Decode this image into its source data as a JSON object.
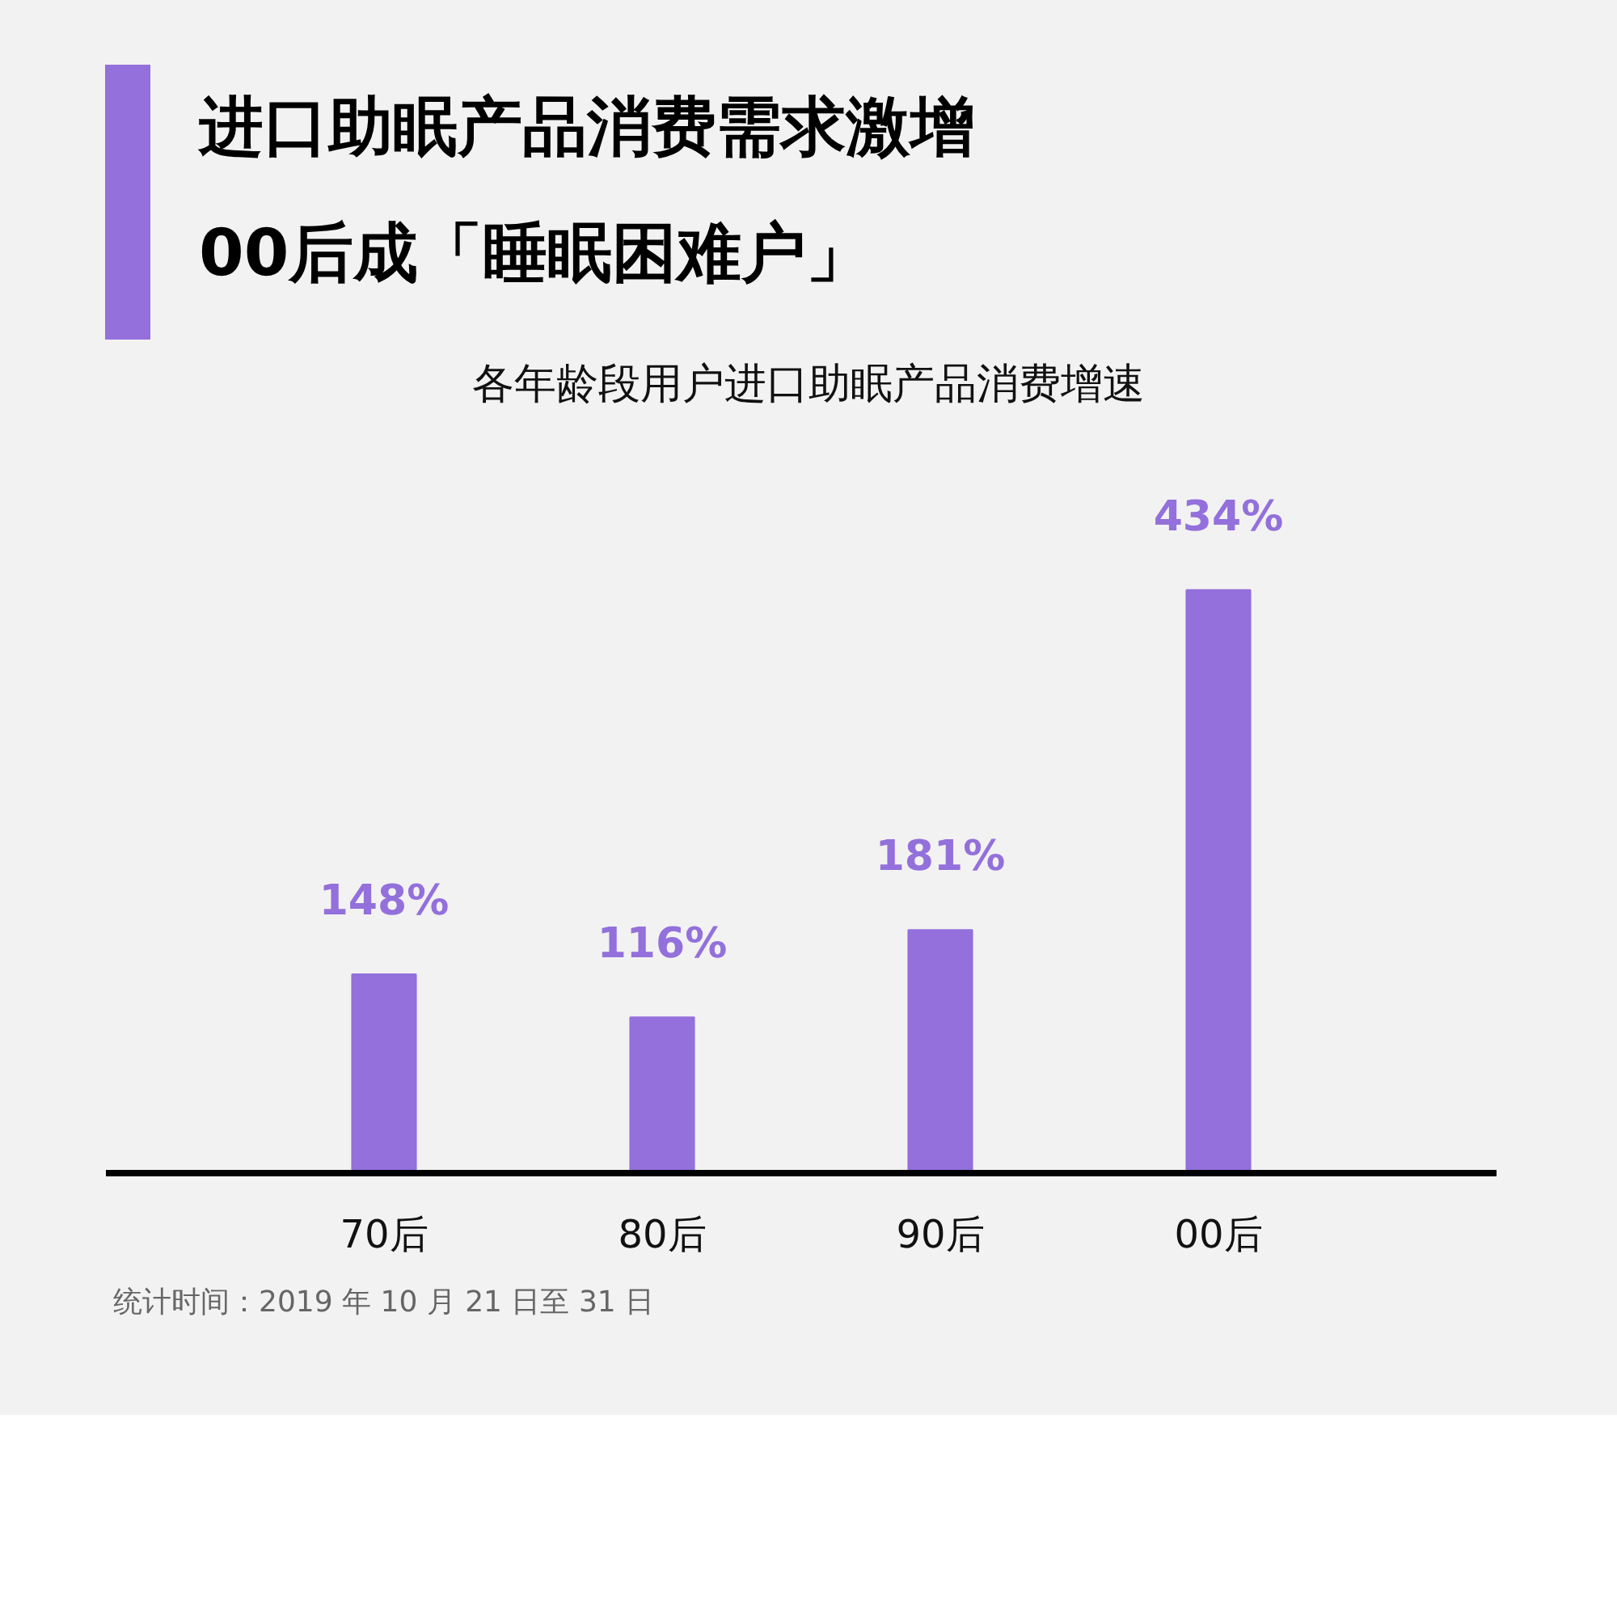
{
  "chart_data": {
    "type": "bar",
    "title": "进口助眠产品消费需求激增\n00后成「睡眠困难户」",
    "subtitle": "各年龄段用户进口助眠产品消费增速",
    "categories": [
      "70后",
      "80后",
      "90后",
      "00后"
    ],
    "values": [
      148,
      116,
      181,
      434
    ],
    "color": "#9370db",
    "value_labels": [
      "148%",
      "116%",
      "181%",
      "434%"
    ],
    "annotations": [
      "统计时间：2019 年 10 月 21 日至 31 日"
    ]
  }
}
